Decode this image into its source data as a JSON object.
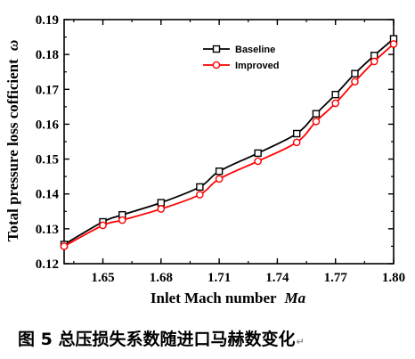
{
  "chart_data": {
    "type": "line",
    "xlabel": "Inlet Mach number",
    "xlabel_symbol": "Ma",
    "ylabel": "Total pressure loss cofficient",
    "ylabel_symbol": "ω",
    "xlim": [
      1.63,
      1.8
    ],
    "ylim": [
      0.12,
      0.19
    ],
    "xticks": [
      "1.65",
      "1.68",
      "1.71",
      "1.74",
      "1.77",
      "1.80"
    ],
    "yticks": [
      "0.12",
      "0.13",
      "0.14",
      "0.15",
      "0.16",
      "0.17",
      "0.18",
      "0.19"
    ],
    "legend_position": "top-right",
    "grid": false,
    "series": [
      {
        "name": "Baseline",
        "color": "#000000",
        "marker": "square",
        "x": [
          1.63,
          1.65,
          1.66,
          1.68,
          1.7,
          1.71,
          1.73,
          1.75,
          1.76,
          1.77,
          1.78,
          1.79,
          1.8
        ],
        "y": [
          0.1255,
          0.132,
          0.134,
          0.1375,
          0.142,
          0.1465,
          0.1517,
          0.1573,
          0.163,
          0.1685,
          0.1745,
          0.1797,
          0.1845
        ]
      },
      {
        "name": "Improved",
        "color": "#ff0000",
        "marker": "circle",
        "x": [
          1.63,
          1.65,
          1.66,
          1.68,
          1.7,
          1.71,
          1.73,
          1.75,
          1.76,
          1.77,
          1.78,
          1.79,
          1.8
        ],
        "y": [
          0.125,
          0.131,
          0.1325,
          0.1357,
          0.1398,
          0.1443,
          0.1494,
          0.1548,
          0.1608,
          0.166,
          0.1722,
          0.178,
          0.183
        ]
      }
    ]
  },
  "caption": {
    "text": "图 5 总压损失系数随进口马赫数变化",
    "mark": "↵"
  }
}
